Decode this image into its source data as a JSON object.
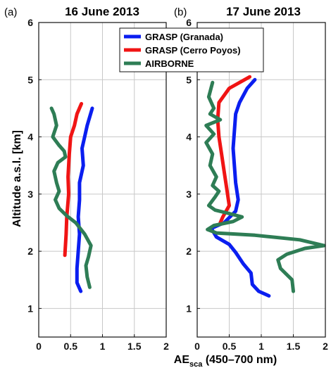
{
  "chart_data": [
    {
      "type": "line",
      "panel_label": "(a)",
      "title": "16 June 2013",
      "xlim": [
        0,
        2
      ],
      "ylim": [
        0.5,
        6
      ],
      "xticks": [
        "0",
        "0.5",
        "1",
        "1.5",
        "2"
      ],
      "yticks": [
        "1",
        "2",
        "3",
        "4",
        "5",
        "6"
      ],
      "ylabel": "Altitude a.s.l. [km]",
      "grid": true,
      "series": [
        {
          "name": "GRASP (Granada)",
          "color": "#0a1ef0",
          "points": [
            [
              0.66,
              1.3
            ],
            [
              0.6,
              1.45
            ],
            [
              0.6,
              1.7
            ],
            [
              0.62,
              2.0
            ],
            [
              0.64,
              2.3
            ],
            [
              0.62,
              2.6
            ],
            [
              0.64,
              2.9
            ],
            [
              0.64,
              3.2
            ],
            [
              0.7,
              3.5
            ],
            [
              0.68,
              3.8
            ],
            [
              0.72,
              4.0
            ],
            [
              0.76,
              4.2
            ],
            [
              0.84,
              4.5
            ]
          ]
        },
        {
          "name": "GRASP (Cerro Poyos)",
          "color": "#f01414",
          "points": [
            [
              0.41,
              1.93
            ],
            [
              0.43,
              2.3
            ],
            [
              0.44,
              2.6
            ],
            [
              0.47,
              3.0
            ],
            [
              0.46,
              3.3
            ],
            [
              0.48,
              3.7
            ],
            [
              0.5,
              4.0
            ],
            [
              0.56,
              4.2
            ],
            [
              0.6,
              4.4
            ],
            [
              0.67,
              4.58
            ]
          ]
        },
        {
          "name": "AIRBORNE",
          "color": "#2e7d55",
          "points": [
            [
              0.8,
              1.37
            ],
            [
              0.76,
              1.55
            ],
            [
              0.74,
              1.75
            ],
            [
              0.78,
              1.9
            ],
            [
              0.82,
              2.1
            ],
            [
              0.72,
              2.3
            ],
            [
              0.58,
              2.5
            ],
            [
              0.44,
              2.62
            ],
            [
              0.32,
              2.75
            ],
            [
              0.26,
              2.9
            ],
            [
              0.32,
              3.05
            ],
            [
              0.28,
              3.2
            ],
            [
              0.24,
              3.4
            ],
            [
              0.3,
              3.55
            ],
            [
              0.42,
              3.65
            ],
            [
              0.4,
              3.75
            ],
            [
              0.32,
              3.85
            ],
            [
              0.22,
              4.0
            ],
            [
              0.28,
              4.2
            ],
            [
              0.24,
              4.4
            ],
            [
              0.2,
              4.5
            ]
          ]
        }
      ]
    },
    {
      "type": "line",
      "panel_label": "(b)",
      "title": "17 June 2013",
      "xlim": [
        0,
        2
      ],
      "ylim": [
        0.5,
        6
      ],
      "xticks": [
        "0",
        "0.5",
        "1",
        "1.5",
        "2"
      ],
      "yticks": [
        "1",
        "2",
        "3",
        "4",
        "5",
        "6"
      ],
      "xlabel_main": "AE",
      "xlabel_sub": "sca",
      "xlabel_rest": " (450–700 nm)",
      "grid": true,
      "series": [
        {
          "name": "GRASP (Granada)",
          "color": "#0a1ef0",
          "points": [
            [
              1.12,
              1.22
            ],
            [
              0.96,
              1.3
            ],
            [
              0.86,
              1.42
            ],
            [
              0.84,
              1.62
            ],
            [
              0.72,
              1.78
            ],
            [
              0.6,
              1.98
            ],
            [
              0.5,
              2.12
            ],
            [
              0.3,
              2.25
            ],
            [
              0.22,
              2.4
            ],
            [
              0.42,
              2.5
            ],
            [
              0.6,
              2.7
            ],
            [
              0.64,
              2.9
            ],
            [
              0.6,
              3.2
            ],
            [
              0.58,
              3.5
            ],
            [
              0.56,
              3.8
            ],
            [
              0.58,
              4.1
            ],
            [
              0.6,
              4.4
            ],
            [
              0.66,
              4.6
            ],
            [
              0.78,
              4.85
            ],
            [
              0.9,
              5.0
            ]
          ]
        },
        {
          "name": "GRASP (Cerro Poyos)",
          "color": "#f01414",
          "points": [
            [
              0.36,
              2.5
            ],
            [
              0.4,
              2.6
            ],
            [
              0.5,
              2.8
            ],
            [
              0.46,
              3.1
            ],
            [
              0.42,
              3.4
            ],
            [
              0.38,
              3.7
            ],
            [
              0.34,
              4.0
            ],
            [
              0.32,
              4.3
            ],
            [
              0.34,
              4.6
            ],
            [
              0.5,
              4.85
            ],
            [
              0.82,
              5.05
            ]
          ]
        },
        {
          "name": "AIRBORNE",
          "color": "#2e7d55",
          "points": [
            [
              1.5,
              1.3
            ],
            [
              1.48,
              1.5
            ],
            [
              1.3,
              1.7
            ],
            [
              1.26,
              1.85
            ],
            [
              1.4,
              1.95
            ],
            [
              1.68,
              2.05
            ],
            [
              1.98,
              2.1
            ],
            [
              1.6,
              2.2
            ],
            [
              0.9,
              2.28
            ],
            [
              0.3,
              2.32
            ],
            [
              0.16,
              2.38
            ],
            [
              0.26,
              2.45
            ],
            [
              0.56,
              2.52
            ],
            [
              0.7,
              2.6
            ],
            [
              0.5,
              2.66
            ],
            [
              0.28,
              2.72
            ],
            [
              0.18,
              2.8
            ],
            [
              0.28,
              2.95
            ],
            [
              0.34,
              3.05
            ],
            [
              0.24,
              3.15
            ],
            [
              0.3,
              3.3
            ],
            [
              0.2,
              3.5
            ],
            [
              0.24,
              3.7
            ],
            [
              0.14,
              3.9
            ],
            [
              0.26,
              4.05
            ],
            [
              0.14,
              4.2
            ],
            [
              0.36,
              4.3
            ],
            [
              0.2,
              4.4
            ],
            [
              0.26,
              4.5
            ],
            [
              0.18,
              4.7
            ],
            [
              0.24,
              4.95
            ]
          ]
        }
      ]
    }
  ],
  "y_axis_label": "Altitude a.s.l. [km]"
}
